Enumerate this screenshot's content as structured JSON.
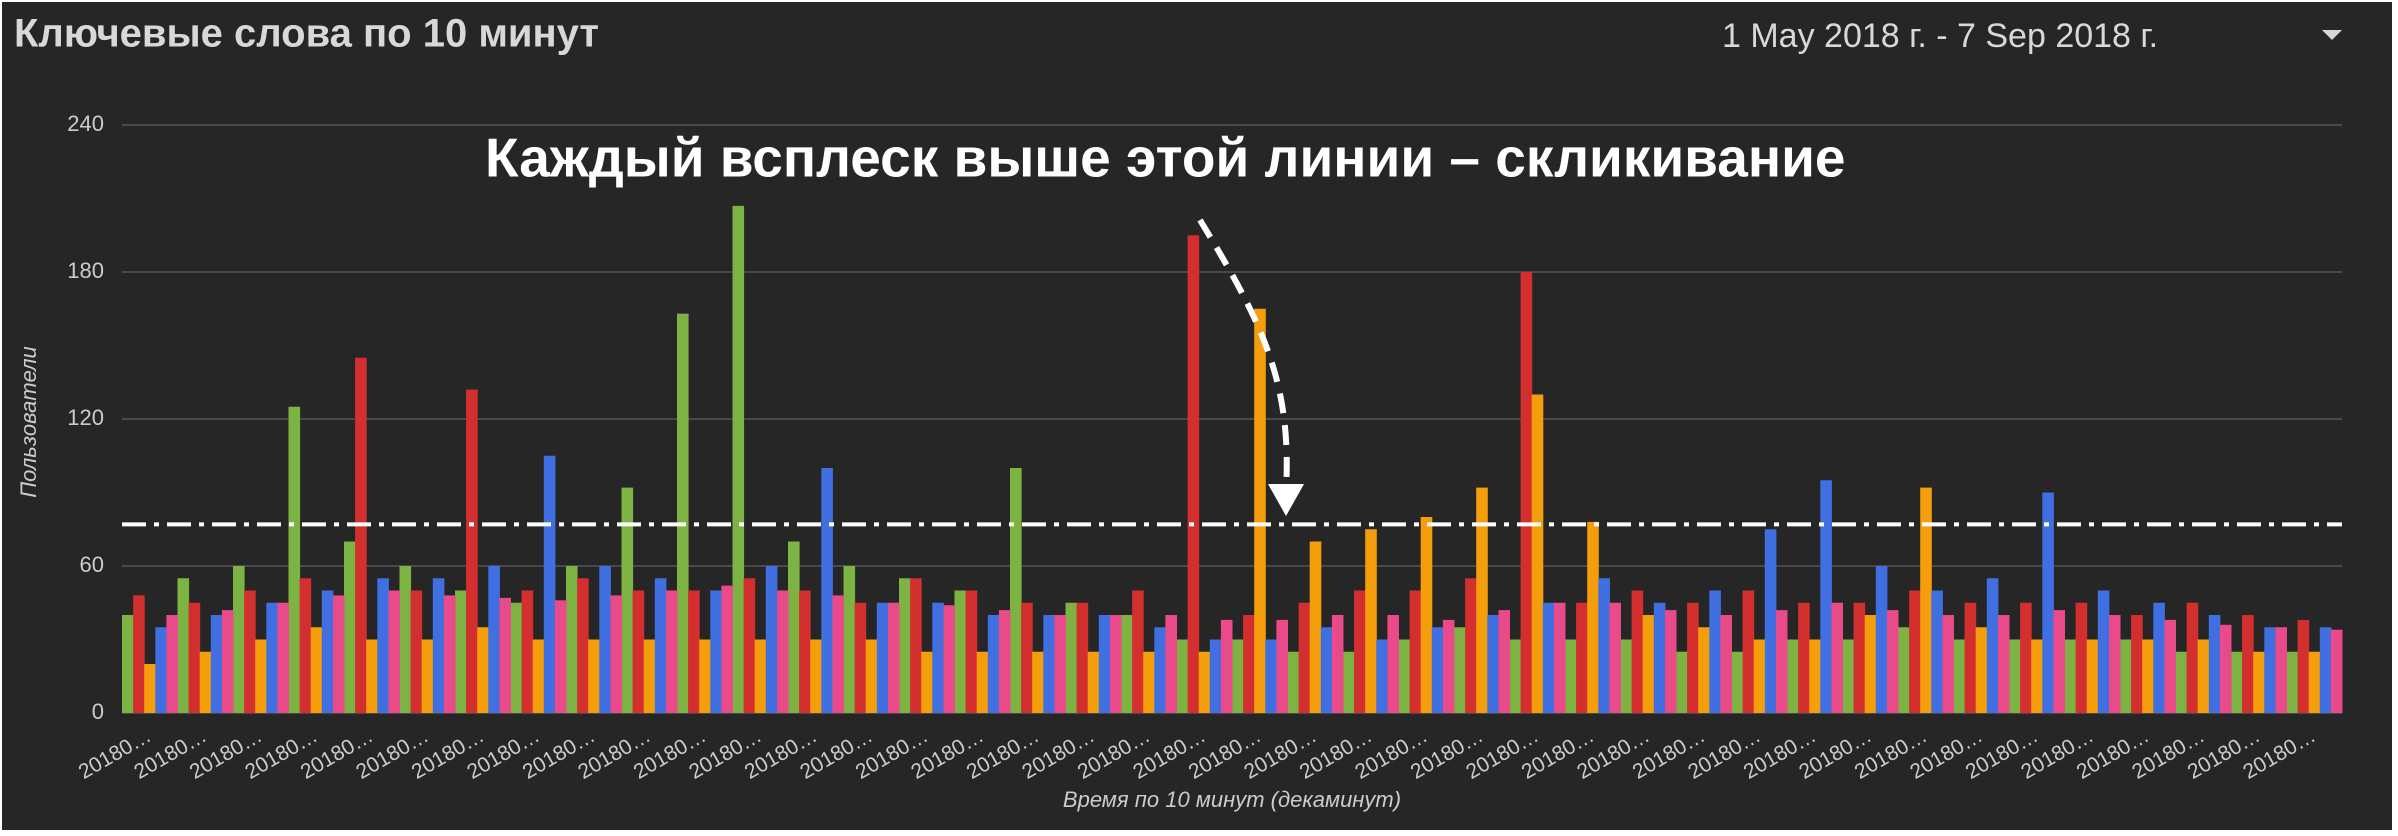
{
  "header": {
    "title": "Ключевые слова по 10 минут",
    "date_range": "1 May 2018 г. - 7 Sep 2018 г."
  },
  "chart_data": {
    "type": "bar",
    "annotation": "Каждый всплеск выше этой линии – скликивание",
    "threshold": 77,
    "y_label": "Пользователи",
    "x_label": "Время по 10 минут (декаминут)",
    "categories": [
      "20180…",
      "20180…",
      "20180…",
      "20180…",
      "20180…",
      "20180…",
      "20180…",
      "20180…",
      "20180…",
      "20180…",
      "20180…",
      "20180…",
      "20180…",
      "20180…",
      "20180…",
      "20180…",
      "20180…",
      "20180…",
      "20180…",
      "20180…",
      "20180…",
      "20180…",
      "20180…",
      "20180…",
      "20180…",
      "20180…",
      "20180…",
      "20180…",
      "20180…",
      "20180…",
      "20180…",
      "20180…",
      "20180…",
      "20180…",
      "20180…",
      "20180…",
      "20180…",
      "20180…",
      "20180…",
      "20180…"
    ],
    "series": [
      {
        "color": "#7cb342",
        "values": [
          40,
          55,
          60,
          125,
          70,
          60,
          50,
          45,
          60,
          92,
          163,
          207,
          70,
          60,
          55,
          50,
          100,
          45,
          40,
          30,
          30,
          25,
          25,
          30,
          35,
          30,
          30,
          30,
          25,
          25,
          30,
          30,
          35,
          30,
          30,
          30,
          30,
          25,
          25,
          25
        ]
      },
      {
        "color": "#d32f2f",
        "values": [
          48,
          45,
          50,
          55,
          145,
          50,
          132,
          50,
          55,
          50,
          50,
          55,
          50,
          45,
          55,
          50,
          45,
          45,
          50,
          195,
          40,
          45,
          50,
          50,
          55,
          180,
          45,
          50,
          45,
          50,
          45,
          45,
          50,
          45,
          45,
          45,
          40,
          45,
          40,
          38
        ]
      },
      {
        "color": "#f59e0b",
        "values": [
          20,
          25,
          30,
          35,
          30,
          30,
          35,
          30,
          30,
          30,
          30,
          30,
          30,
          30,
          25,
          25,
          25,
          25,
          25,
          25,
          165,
          70,
          75,
          80,
          92,
          130,
          78,
          40,
          35,
          30,
          30,
          40,
          92,
          35,
          30,
          30,
          30,
          30,
          25,
          25
        ]
      },
      {
        "color": "#3f6fe0",
        "values": [
          35,
          40,
          45,
          50,
          55,
          55,
          60,
          105,
          60,
          55,
          50,
          60,
          100,
          45,
          45,
          40,
          40,
          40,
          35,
          30,
          30,
          35,
          30,
          35,
          40,
          45,
          55,
          45,
          50,
          75,
          95,
          60,
          50,
          55,
          90,
          50,
          45,
          40,
          35,
          35
        ]
      },
      {
        "color": "#e84a8a",
        "values": [
          40,
          42,
          45,
          48,
          50,
          48,
          47,
          46,
          48,
          50,
          52,
          50,
          48,
          45,
          44,
          42,
          40,
          40,
          40,
          38,
          38,
          40,
          40,
          38,
          42,
          45,
          45,
          42,
          40,
          42,
          45,
          42,
          40,
          40,
          42,
          40,
          38,
          36,
          35,
          34
        ]
      }
    ],
    "ylim": [
      0,
      240
    ],
    "yticks": [
      0,
      60,
      120,
      180,
      240
    ],
    "grid": true
  }
}
